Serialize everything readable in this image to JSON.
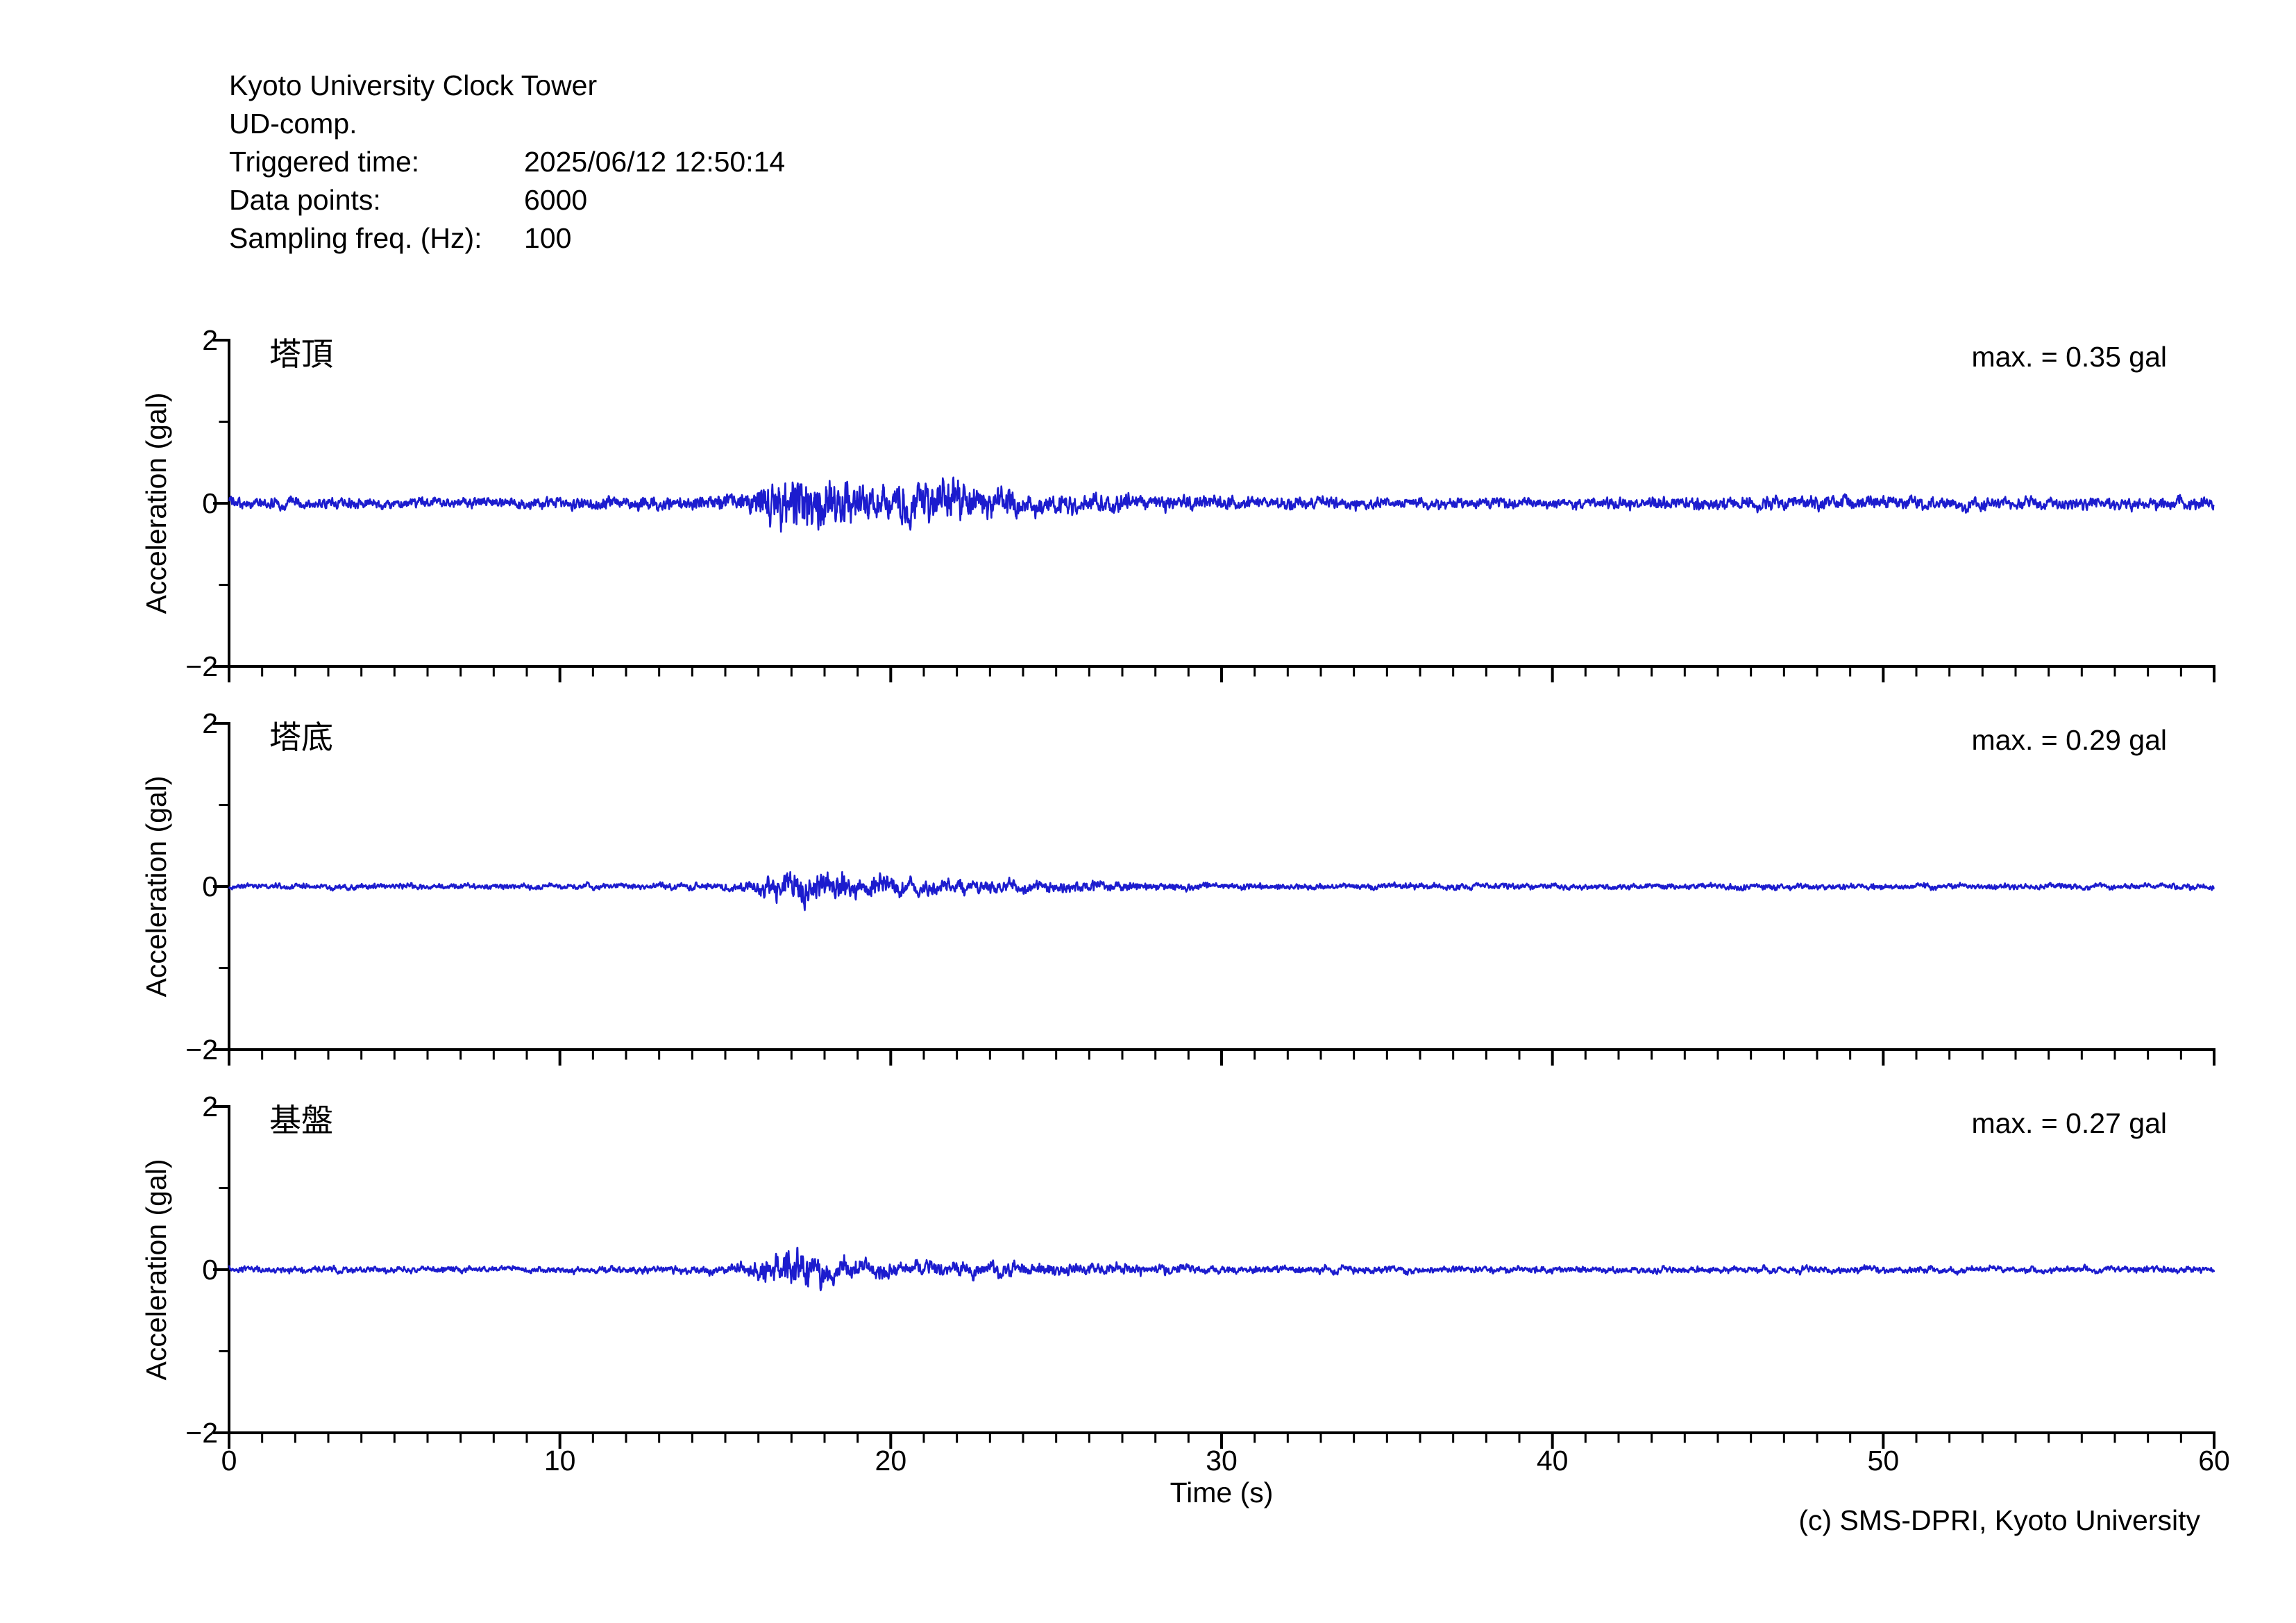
{
  "header": {
    "site": "Kyoto University Clock Tower",
    "component": "UD-comp.",
    "triggered_label": "Triggered time:",
    "triggered_value": "2025/06/12 12:50:14",
    "datapoints_label": "Data points:",
    "datapoints_value": "6000",
    "sampling_label": "Sampling freq. (Hz):",
    "sampling_value": "100"
  },
  "footer": {
    "credit": "(c) SMS-DPRI, Kyoto University"
  },
  "chart_data": {
    "type": "line",
    "title": "",
    "xlabel": "Time (s)",
    "ylabel": "Acceleration (gal)",
    "xlim": [
      0,
      60
    ],
    "ylim": [
      -2,
      2
    ],
    "x_major_ticks": [
      0,
      10,
      20,
      30,
      40,
      50,
      60
    ],
    "x_minor_step_s": 1,
    "y_major_ticks": [
      2,
      0,
      -2
    ],
    "y_tick_labels": [
      "2",
      "0",
      "−2"
    ],
    "y_minor_ticks": [
      1,
      -1
    ],
    "grid": false,
    "legend": "none",
    "sampling_hz": 100,
    "n_points": 6000,
    "duration_s": 60,
    "line_color": "#1C1CCE",
    "axis_color": "#000000",
    "series": [
      {
        "label": "塔頂",
        "max_label": "max. = 0.35 gal",
        "max_gal": 0.35,
        "seed": 101,
        "envelope_gal": [
          [
            0,
            0.065
          ],
          [
            8,
            0.06
          ],
          [
            12,
            0.075
          ],
          [
            14,
            0.08
          ],
          [
            15.5,
            0.1
          ],
          [
            16.2,
            0.22
          ],
          [
            17,
            0.32
          ],
          [
            17.6,
            0.35
          ],
          [
            18.4,
            0.28
          ],
          [
            19.2,
            0.2
          ],
          [
            20,
            0.17
          ],
          [
            20.8,
            0.22
          ],
          [
            21.6,
            0.26
          ],
          [
            22.4,
            0.18
          ],
          [
            23.5,
            0.14
          ],
          [
            25,
            0.12
          ],
          [
            26.5,
            0.1
          ],
          [
            28,
            0.09
          ],
          [
            30,
            0.08
          ],
          [
            33,
            0.065
          ],
          [
            36,
            0.06
          ],
          [
            40,
            0.06
          ],
          [
            44,
            0.065
          ],
          [
            47,
            0.075
          ],
          [
            50,
            0.08
          ],
          [
            52,
            0.07
          ],
          [
            55,
            0.065
          ],
          [
            58,
            0.07
          ],
          [
            60,
            0.065
          ]
        ]
      },
      {
        "label": "塔底",
        "max_label": "max. = 0.29 gal",
        "max_gal": 0.29,
        "seed": 202,
        "envelope_gal": [
          [
            0,
            0.045
          ],
          [
            10,
            0.045
          ],
          [
            13,
            0.05
          ],
          [
            15,
            0.06
          ],
          [
            16,
            0.14
          ],
          [
            16.8,
            0.25
          ],
          [
            17.4,
            0.29
          ],
          [
            18,
            0.24
          ],
          [
            19,
            0.19
          ],
          [
            20,
            0.17
          ],
          [
            21,
            0.15
          ],
          [
            22,
            0.13
          ],
          [
            23,
            0.11
          ],
          [
            24.5,
            0.095
          ],
          [
            26,
            0.08
          ],
          [
            28,
            0.065
          ],
          [
            30,
            0.055
          ],
          [
            34,
            0.05
          ],
          [
            40,
            0.047
          ],
          [
            46,
            0.05
          ],
          [
            52,
            0.047
          ],
          [
            60,
            0.045
          ]
        ]
      },
      {
        "label": "基盤",
        "max_label": "max. = 0.27 gal",
        "max_gal": 0.27,
        "seed": 303,
        "envelope_gal": [
          [
            0,
            0.042
          ],
          [
            10,
            0.042
          ],
          [
            13,
            0.048
          ],
          [
            15,
            0.055
          ],
          [
            16,
            0.12
          ],
          [
            16.8,
            0.23
          ],
          [
            17.3,
            0.27
          ],
          [
            18,
            0.2
          ],
          [
            19,
            0.15
          ],
          [
            20,
            0.13
          ],
          [
            21.5,
            0.11
          ],
          [
            23,
            0.095
          ],
          [
            25,
            0.08
          ],
          [
            27,
            0.065
          ],
          [
            29,
            0.055
          ],
          [
            33,
            0.048
          ],
          [
            40,
            0.045
          ],
          [
            48,
            0.045
          ],
          [
            60,
            0.042
          ]
        ]
      }
    ]
  }
}
